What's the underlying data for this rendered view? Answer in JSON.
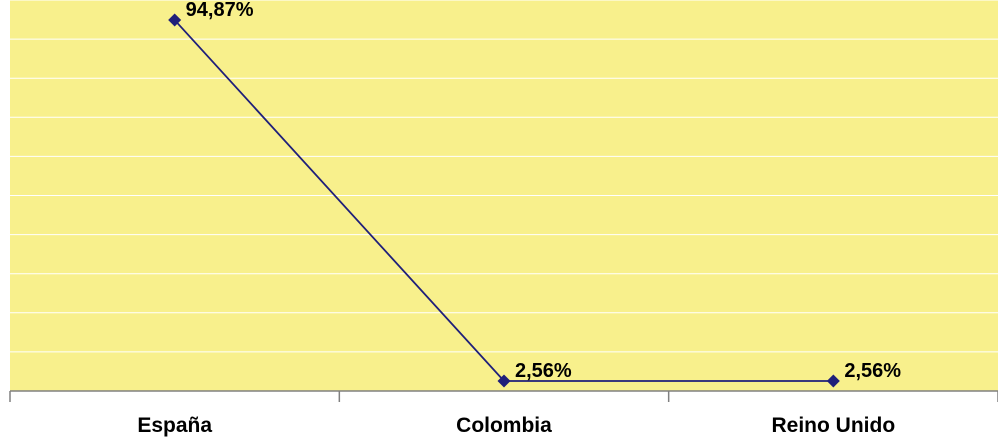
{
  "chart_data": {
    "type": "line",
    "categories": [
      "España",
      "Colombia",
      "Reino Unido"
    ],
    "values": [
      94.87,
      2.56,
      2.56
    ],
    "data_labels": [
      "94,87%",
      "2,56%",
      "2,56%"
    ],
    "ylim": [
      0,
      100
    ],
    "grid": true,
    "gridline_count": 10,
    "legend": "none",
    "colors": {
      "plot_background": "#FFFF99",
      "plot_fill": "#F8F08C",
      "gridline": "#FFFFFF",
      "line": "#1F1F7A",
      "marker": "#1F1F7A",
      "axis": "#808080"
    }
  }
}
